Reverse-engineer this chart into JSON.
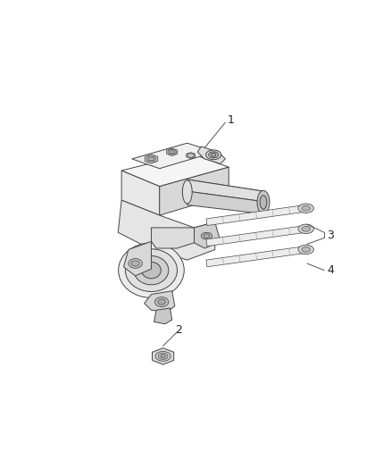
{
  "background_color": "#ffffff",
  "figsize": [
    4.38,
    5.33
  ],
  "dpi": 100,
  "line_color": "#444444",
  "line_width": 0.7,
  "fill_light": "#f0f0f0",
  "fill_mid": "#e0e0e0",
  "fill_dark": "#c8c8c8",
  "label_color": "#222222",
  "label_fontsize": 9,
  "leader_color": "#555555",
  "leader_lw": 0.7
}
